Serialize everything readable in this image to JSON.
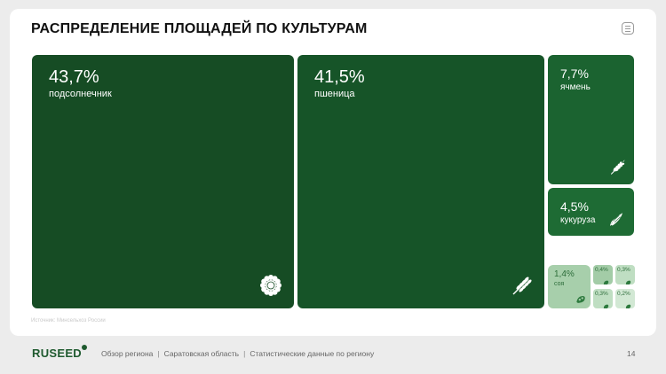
{
  "page": {
    "title": "РАСПРЕДЕЛЕНИЕ ПЛОЩАДЕЙ ПО КУЛЬТУРАМ",
    "source": "Источник: Минсельхоз России",
    "menu_icon": "menu-lines-icon"
  },
  "footer": {
    "logo": "RUSEED",
    "nav": [
      "Обзор региона",
      "Саратовская область",
      "Статистические данные по региону"
    ],
    "page_number": "14"
  },
  "chart_data": {
    "type": "treemap",
    "title": "РАСПРЕДЕЛЕНИЕ ПЛОЩАДЕЙ ПО КУЛЬТУРАМ",
    "unit": "%",
    "items": [
      {
        "label": "подсолнечник",
        "value_text": "43,7%",
        "value": 43.7,
        "icon": "sunflower-icon",
        "color": "#164c24"
      },
      {
        "label": "пшеница",
        "value_text": "41,5%",
        "value": 41.5,
        "icon": "wheat-icon",
        "color": "#165428"
      },
      {
        "label": "ячмень",
        "value_text": "7,7%",
        "value": 7.7,
        "icon": "barley-icon",
        "color": "#1b6330"
      },
      {
        "label": "кукуруза",
        "value_text": "4,5%",
        "value": 4.5,
        "icon": "corn-icon",
        "color": "#1e6b34"
      },
      {
        "label": "соя",
        "value_text": "1,4%",
        "value": 1.4,
        "icon": "soybean-icon",
        "color": "#a7cfab"
      },
      {
        "label": "",
        "value_text": "0,4%",
        "value": 0.4,
        "icon": "crop-icon",
        "color": "#a3cca7"
      },
      {
        "label": "",
        "value_text": "0,3%",
        "value": 0.3,
        "icon": "crop-icon",
        "color": "#bfdec2"
      },
      {
        "label": "",
        "value_text": "0,3%",
        "value": 0.3,
        "icon": "crop-icon",
        "color": "#bfdec2"
      },
      {
        "label": "",
        "value_text": "0,2%",
        "value": 0.2,
        "icon": "crop-icon",
        "color": "#d2e8d4"
      }
    ]
  }
}
